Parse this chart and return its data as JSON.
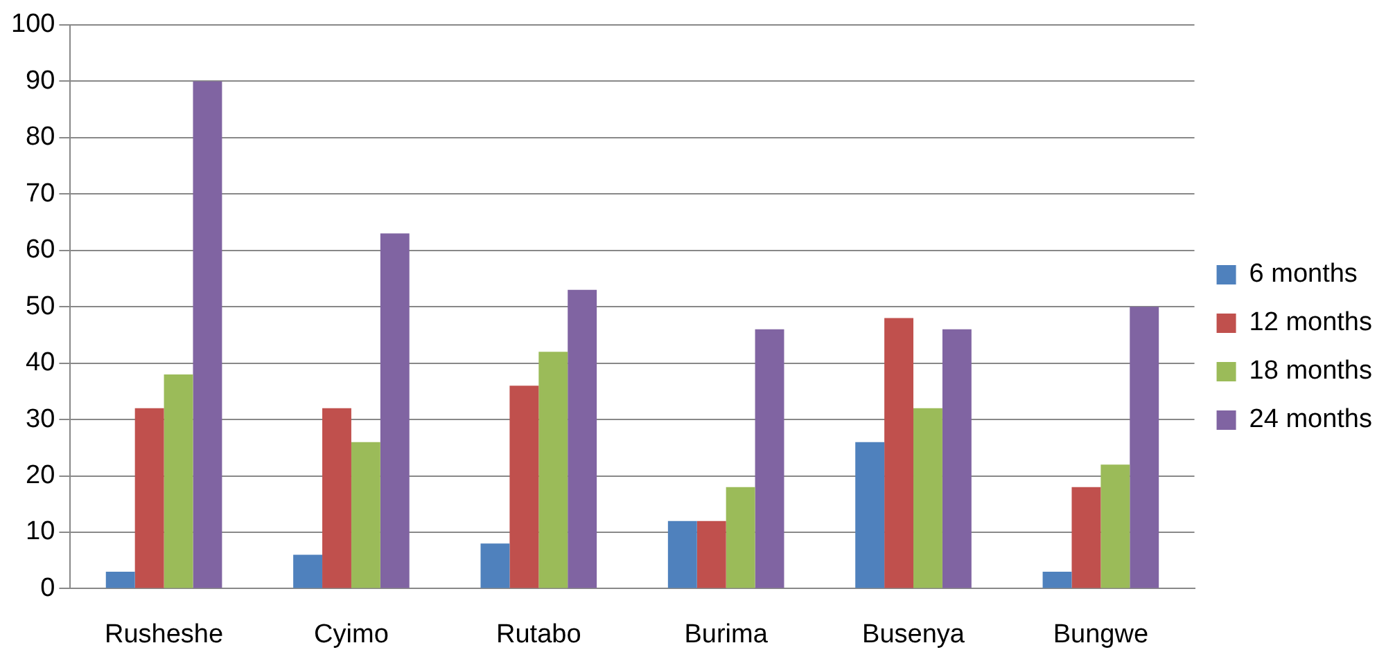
{
  "chart_data": {
    "type": "bar",
    "categories": [
      "Rusheshe",
      "Cyimo",
      "Rutabo",
      "Burima",
      "Busenya",
      "Bungwe"
    ],
    "series": [
      {
        "name": "6 months",
        "color": "#4f81bd",
        "values": [
          3,
          6,
          8,
          12,
          26,
          3
        ]
      },
      {
        "name": "12 months",
        "color": "#c0504d",
        "values": [
          32,
          32,
          36,
          12,
          48,
          18
        ]
      },
      {
        "name": "18 months",
        "color": "#9bbb59",
        "values": [
          38,
          26,
          42,
          18,
          32,
          22
        ]
      },
      {
        "name": "24 months",
        "color": "#8064a2",
        "values": [
          90,
          63,
          53,
          46,
          46,
          50
        ]
      }
    ],
    "ylim": [
      0,
      100
    ],
    "yticks": [
      0,
      10,
      20,
      30,
      40,
      50,
      60,
      70,
      80,
      90,
      100
    ],
    "grid": "y",
    "legend": "right"
  }
}
